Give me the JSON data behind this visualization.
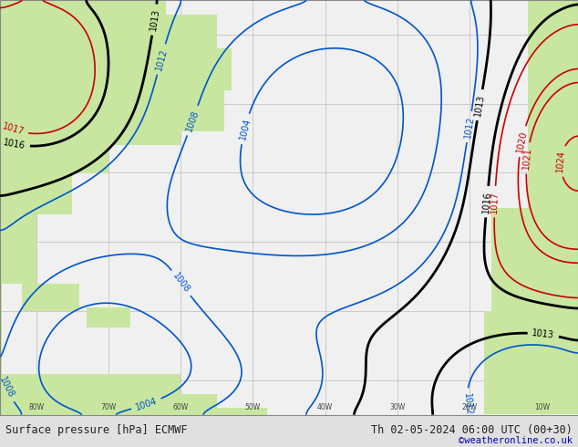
{
  "title_bottom_left": "Surface pressure [hPa] ECMWF",
  "title_bottom_right": "Th 02-05-2024 06:00 UTC (00+30)",
  "copyright": "©weatheronline.co.uk",
  "background_land": "#c8e6a0",
  "background_sea": "#f0f0f0",
  "border_color": "#888888",
  "grid_color": "#bbbbbb",
  "bottom_bar_color": "#e0e0e0",
  "bottom_text_color": "#222222",
  "copyright_color": "#0000bb",
  "lon_min": -85,
  "lon_max": -5,
  "lat_min": 5,
  "lat_max": 65,
  "grid_lons": [
    -80,
    -70,
    -60,
    -50,
    -40,
    -30,
    -20,
    -10
  ],
  "grid_lats": [
    10,
    20,
    30,
    40,
    50,
    60
  ],
  "font_size_labels": 7.0,
  "font_size_bottom": 8.5,
  "font_size_copyright": 7.5,
  "isobar_config": {
    "1004": {
      "color": "#0055cc",
      "lw": 1.2
    },
    "1008": {
      "color": "#0055cc",
      "lw": 1.2
    },
    "1012": {
      "color": "#0055cc",
      "lw": 1.2
    },
    "1013": {
      "color": "#000000",
      "lw": 2.0
    },
    "1016": {
      "color": "#000000",
      "lw": 2.0
    },
    "1017": {
      "color": "#cc0000",
      "lw": 1.2
    },
    "1020": {
      "color": "#cc0000",
      "lw": 1.2
    },
    "1021": {
      "color": "#cc0000",
      "lw": 1.2
    },
    "1024": {
      "color": "#cc0000",
      "lw": 1.2
    }
  }
}
